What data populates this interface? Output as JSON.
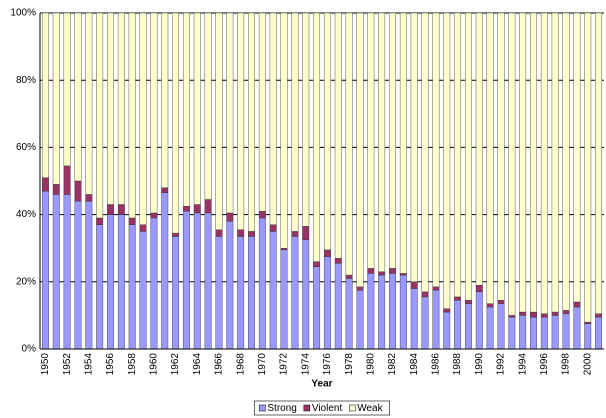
{
  "chart_data": {
    "type": "stacked_bar_percent",
    "x_label": "Year",
    "categories": [
      "1950",
      null,
      "1952",
      null,
      "1954",
      null,
      "1956",
      null,
      "1958",
      null,
      "1960",
      null,
      "1962",
      null,
      "1964",
      null,
      "1966",
      null,
      "1968",
      null,
      "1970",
      null,
      "1972",
      null,
      "1974",
      null,
      "1976",
      null,
      "1978",
      null,
      "1980",
      null,
      "1982",
      null,
      "1984",
      null,
      "1986",
      null,
      "1988",
      null,
      "1990",
      null,
      "1992",
      null,
      "1994",
      null,
      "1996",
      null,
      "1998",
      null,
      "2000",
      null
    ],
    "series": [
      {
        "name": "Strong",
        "color": "#9999ff",
        "values": [
          47,
          46,
          46,
          44,
          44,
          37,
          40,
          40,
          37,
          35,
          39,
          46.5,
          33.5,
          41,
          40.5,
          40.5,
          33.5,
          38,
          33.5,
          33.5,
          39,
          35,
          29.5,
          33.5,
          32.5,
          24.5,
          27.5,
          25.5,
          21,
          17.5,
          22.5,
          22,
          22.5,
          22,
          18,
          15.5,
          17.5,
          11,
          14.5,
          13.5,
          17,
          12.5,
          13.5,
          9.5,
          10,
          9.5,
          9.5,
          10,
          10.5,
          12.5,
          7.5,
          9.5
        ]
      },
      {
        "name": "Violent",
        "color": "#993366",
        "values": [
          4,
          3,
          8.5,
          6,
          2,
          2,
          3,
          3,
          2,
          2,
          1.5,
          1.5,
          1,
          1.5,
          2.5,
          4,
          2,
          2.5,
          2,
          1.5,
          2,
          2,
          0.5,
          1.5,
          4,
          1.5,
          2,
          1.5,
          1,
          1,
          1.5,
          1,
          1.5,
          0.5,
          2,
          1.5,
          1,
          1,
          1,
          1,
          2,
          1,
          1,
          0.5,
          1,
          1.5,
          1,
          1,
          1,
          1.5,
          0.5,
          1
        ]
      },
      {
        "name": "Weak",
        "color": "#ffffcc",
        "values": [
          49,
          51,
          45.5,
          50,
          54,
          61,
          57,
          57,
          61,
          63,
          59.5,
          52,
          65.5,
          57.5,
          57,
          55.5,
          64.5,
          59.5,
          64.5,
          65,
          59,
          63,
          70,
          65,
          63.5,
          74,
          70.5,
          73,
          78,
          81.5,
          76,
          77,
          76,
          77.5,
          80,
          83,
          81.5,
          88,
          84.5,
          85.5,
          81,
          86.5,
          85.5,
          90,
          89,
          89,
          89.5,
          89,
          88.5,
          86,
          92,
          89.5
        ]
      }
    ],
    "ylim": [
      0,
      100
    ],
    "yticks": [
      {
        "value": 0,
        "label": "0%"
      },
      {
        "value": 20,
        "label": "20%"
      },
      {
        "value": 40,
        "label": "40%"
      },
      {
        "value": 60,
        "label": "60%"
      },
      {
        "value": 80,
        "label": "80%"
      },
      {
        "value": 100,
        "label": "100%"
      }
    ],
    "grid": true,
    "legend": "bottom"
  }
}
